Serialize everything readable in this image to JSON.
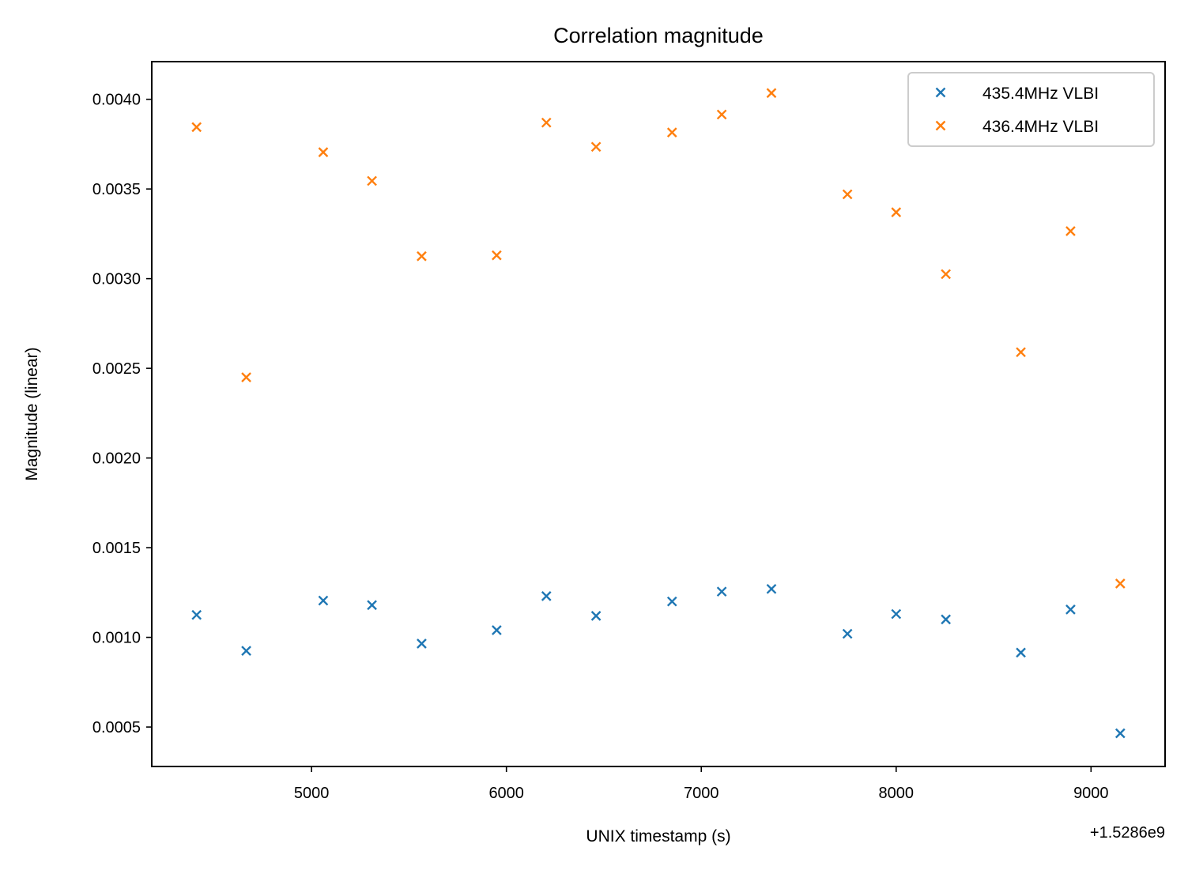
{
  "chart_data": {
    "type": "scatter",
    "title": "Correlation magnitude",
    "xlabel": "UNIX timestamp (s)",
    "ylabel": "Magnitude (linear)",
    "x_offset_label": "+1.5286e9",
    "xlim": [
      4180,
      9380
    ],
    "ylim": [
      0.00028,
      0.00421
    ],
    "xticks": [
      5000,
      6000,
      7000,
      8000,
      9000
    ],
    "xtick_labels": [
      "5000",
      "6000",
      "7000",
      "8000",
      "9000"
    ],
    "yticks": [
      0.0005,
      0.001,
      0.0015,
      0.002,
      0.0025,
      0.003,
      0.0035,
      0.004
    ],
    "ytick_labels": [
      "0.0005",
      "0.0010",
      "0.0015",
      "0.0020",
      "0.0025",
      "0.0030",
      "0.0035",
      "0.0040"
    ],
    "grid": false,
    "legend_position": "top-right",
    "marker": "x",
    "series": [
      {
        "name": "435.4MHz VLBI",
        "color": "#1f77b4",
        "x": [
          4410,
          4665,
          5060,
          5310,
          5565,
          5950,
          6205,
          6460,
          6850,
          7105,
          7360,
          7750,
          8000,
          8255,
          8640,
          8895,
          9150
        ],
        "y": [
          0.001125,
          0.000925,
          0.001205,
          0.00118,
          0.000965,
          0.00104,
          0.00123,
          0.00112,
          0.0012,
          0.001255,
          0.00127,
          0.00102,
          0.00113,
          0.0011,
          0.000915,
          0.001155,
          0.000465
        ]
      },
      {
        "name": "436.4MHz VLBI",
        "color": "#ff7f0e",
        "x": [
          4410,
          4665,
          5060,
          5310,
          5565,
          5950,
          6205,
          6460,
          6850,
          7105,
          7360,
          7750,
          8000,
          8255,
          8640,
          8895,
          9150
        ],
        "y": [
          0.003845,
          0.00245,
          0.003705,
          0.003545,
          0.003125,
          0.00313,
          0.00387,
          0.003735,
          0.003815,
          0.003915,
          0.004035,
          0.00347,
          0.00337,
          0.003025,
          0.00259,
          0.003265,
          0.0013
        ]
      }
    ]
  }
}
